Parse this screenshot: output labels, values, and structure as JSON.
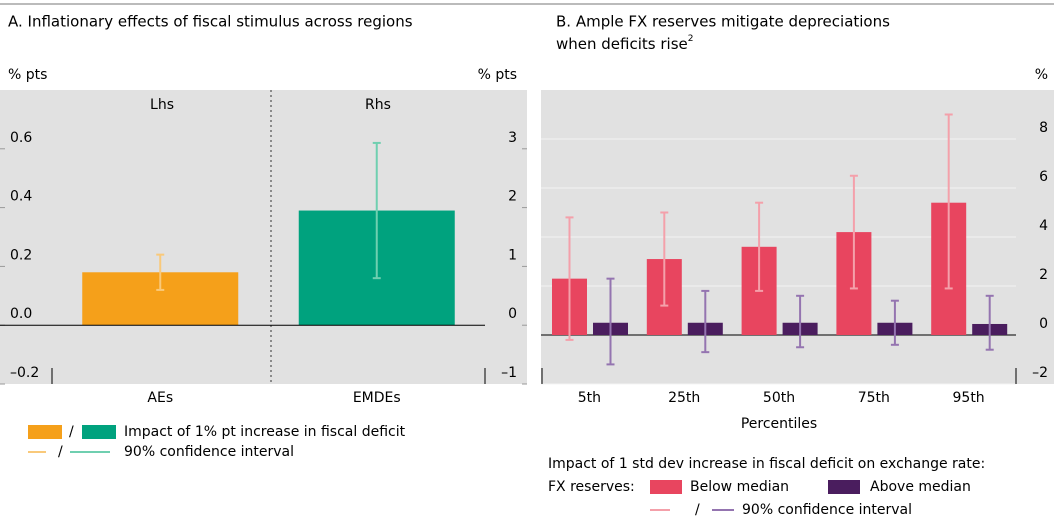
{
  "chart_data": [
    {
      "type": "bar",
      "title": "A. Inflationary effects of fiscal stimulus across regions",
      "ylabel": "% pts",
      "y2label": "% pts",
      "annotations": [
        "Lhs",
        "Rhs"
      ],
      "categories": [
        "AEs",
        "EMDEs"
      ],
      "values": [
        0.18,
        1.95
      ],
      "axes": [
        "y",
        "y2"
      ],
      "ci_low": [
        0.12,
        0.8
      ],
      "ci_high": [
        0.24,
        3.1
      ],
      "colors": [
        "#f5a01a",
        "#00a27e"
      ],
      "ci_colors": [
        "#f9c97a",
        "#6fcfb0"
      ],
      "ylim": [
        -0.2,
        0.8
      ],
      "yticks": [
        {
          "value": -0.2,
          "label": "–0.2"
        },
        {
          "value": 0,
          "label": "0.0"
        },
        0.2,
        0.4,
        0.6
      ],
      "y2lim": [
        -1,
        4
      ],
      "y2ticks": [
        {
          "value": -1,
          "label": "–1"
        },
        0,
        1,
        2,
        3
      ],
      "grid": false,
      "legend": {
        "bar": "Impact of 1% pt increase in fiscal deficit",
        "ci": "90% confidence interval",
        "separator": "/"
      }
    },
    {
      "type": "bar",
      "title": "B. Ample FX reserves mitigate depreciations",
      "title_line2": "when deficits rise",
      "title_note": "2",
      "ylabel": "%",
      "xlabel": "Percentiles",
      "categories": [
        "5th",
        "25th",
        "50th",
        "75th",
        "95th"
      ],
      "series": [
        {
          "name": "Below median",
          "color": "#e8455f",
          "ci_color": "#f4a0aa",
          "values": [
            2.3,
            3.1,
            3.6,
            4.2,
            5.4
          ],
          "ci_low": [
            -0.2,
            1.2,
            1.8,
            1.9,
            1.9
          ],
          "ci_high": [
            4.8,
            5.0,
            5.4,
            6.5,
            9.0
          ]
        },
        {
          "name": "Above median",
          "color": "#4a1d5e",
          "ci_color": "#9474b0",
          "values": [
            0.5,
            0.5,
            0.5,
            0.5,
            0.45
          ],
          "ci_low": [
            -1.2,
            -0.7,
            -0.5,
            -0.4,
            -0.6
          ],
          "ci_high": [
            2.3,
            1.8,
            1.6,
            1.4,
            1.6
          ]
        }
      ],
      "ylim": [
        -2,
        10
      ],
      "yticks": [
        {
          "value": -2,
          "label": "–2"
        },
        0,
        2,
        4,
        6,
        8
      ],
      "grid": true,
      "legend": {
        "heading": "Impact of 1 std dev increase in fiscal deficit on exchange rate:",
        "prefix": "FX reserves:",
        "ci": "90% confidence interval",
        "separator": "/"
      }
    }
  ]
}
